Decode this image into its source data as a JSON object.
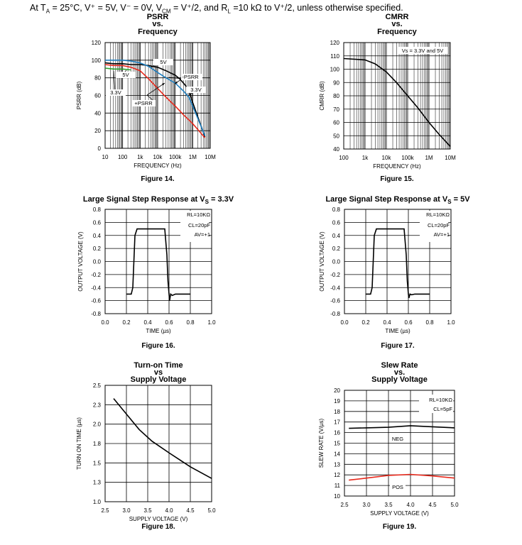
{
  "header": {
    "prefix": "At T",
    "ta_sub": "A",
    "mid": " = 25°C, V⁺ = 5V, V⁻ = 0V, V",
    "cm_sub": "CM",
    "rest": " = V⁺/2, and R",
    "rl_sub": "L",
    "tail": " =10 kΩ to V⁺/2, unless otherwise specified."
  },
  "chart_data": [
    {
      "type": "line",
      "title": [
        "PSRR",
        "vs.",
        "Frequency"
      ],
      "figure": "Figure 14.",
      "xlabel": "FREQUENCY (Hz)",
      "ylabel": "PSRR (dB)",
      "xscale": "log",
      "xticks": [
        "10",
        "100",
        "1k",
        "10k",
        "100k",
        "1M",
        "10M"
      ],
      "yticks": [
        "0",
        "20",
        "40",
        "60",
        "80",
        "100",
        "120"
      ],
      "xlim": [
        10,
        10000000
      ],
      "ylim": [
        0,
        120
      ],
      "grid": true,
      "annotations": [
        "5V",
        "-PSRR",
        "5V",
        "3.3V",
        "3.3V",
        "+PSRR"
      ],
      "series": [
        {
          "color": "#000000",
          "x": [
            10,
            30,
            100,
            300,
            1000,
            3000,
            10000,
            30000,
            100000,
            200000,
            400000,
            700000,
            1000000,
            2000000,
            5000000
          ],
          "y": [
            97,
            96,
            96,
            95,
            95,
            94,
            92,
            88,
            83,
            78,
            71,
            62,
            52,
            35,
            13
          ]
        },
        {
          "color": "#1f7fc0",
          "x": [
            10,
            30,
            100,
            300,
            1000,
            3000,
            10000,
            30000,
            100000,
            300000,
            600000,
            1000000,
            3000000,
            5000000
          ],
          "y": [
            100,
            100,
            100,
            99,
            97,
            93,
            86,
            80,
            74,
            65,
            58,
            48,
            25,
            14
          ]
        },
        {
          "color": "#2ca02c",
          "x": [
            10,
            30,
            60,
            100,
            300
          ],
          "y": [
            91,
            90,
            90,
            90,
            89
          ]
        },
        {
          "color": "#e8291c",
          "x": [
            10,
            30,
            100,
            300,
            1000,
            3000,
            10000,
            30000,
            100000,
            300000,
            1000000,
            3000000,
            5000000
          ],
          "y": [
            95,
            94,
            94,
            92,
            88,
            79,
            68,
            58,
            48,
            38,
            28,
            17,
            12
          ]
        }
      ]
    },
    {
      "type": "line",
      "title": [
        "CMRR",
        "vs.",
        "Frequency"
      ],
      "figure": "Figure 15.",
      "xlabel": "FREQUENCY (Hz)",
      "ylabel": "CMRR (dB)",
      "xscale": "log",
      "xticks": [
        "100",
        "1k",
        "10k",
        "100k",
        "1M",
        "10M"
      ],
      "yticks": [
        "40",
        "50",
        "60",
        "70",
        "80",
        "90",
        "100",
        "110",
        "120"
      ],
      "xlim": [
        100,
        10000000
      ],
      "ylim": [
        40,
        120
      ],
      "grid": true,
      "legend": "Vs = 3.3V and 5V",
      "series": [
        {
          "color": "#000000",
          "x": [
            100,
            1000,
            3000,
            10000,
            30000,
            100000,
            300000,
            1000000,
            3000000,
            10000000
          ],
          "y": [
            108,
            107,
            104,
            98,
            90,
            80,
            71,
            60,
            51,
            42
          ]
        }
      ]
    },
    {
      "type": "line",
      "title": [
        "Large Signal Step Response at V",
        "S",
        " = 3.3V"
      ],
      "figure": "Figure 16.",
      "xlabel": "TIME (µs)",
      "ylabel": "OUTPUT VOLTAGE (V)",
      "xticks": [
        "0.0",
        "0.2",
        "0.4",
        "0.6",
        "0.8",
        "1.0"
      ],
      "yticks": [
        "-0.8",
        "-0.6",
        "-0.4",
        "-0.2",
        "0.0",
        "0.2",
        "0.4",
        "0.6",
        "0.8"
      ],
      "xlim": [
        0,
        1
      ],
      "ylim": [
        -0.8,
        0.8
      ],
      "grid": true,
      "annotations": [
        "RL=10KΩ",
        "CL=20pF",
        "AV=+1"
      ],
      "series": [
        {
          "color": "#000000",
          "x": [
            0.2,
            0.245,
            0.26,
            0.27,
            0.28,
            0.3,
            0.42,
            0.56,
            0.58,
            0.59,
            0.6,
            0.605,
            0.615,
            0.63,
            0.66,
            0.8
          ],
          "y": [
            -0.5,
            -0.5,
            -0.4,
            0.0,
            0.4,
            0.5,
            0.5,
            0.5,
            0.1,
            -0.3,
            -0.5,
            -0.6,
            -0.5,
            -0.52,
            -0.5,
            -0.5
          ]
        }
      ]
    },
    {
      "type": "line",
      "title": [
        "Large Signal Step Response at V",
        "S",
        " = 5V"
      ],
      "figure": "Figure 17.",
      "xlabel": "TIME (µs)",
      "ylabel": "OUTPUT VOLTAGE (V)",
      "xticks": [
        "0.0",
        "0.2",
        "0.4",
        "0.6",
        "0.8",
        "1.0"
      ],
      "yticks": [
        "-0.8",
        "-0.6",
        "-0.4",
        "-0.2",
        "0.0",
        "0.2",
        "0.4",
        "0.6",
        "0.8"
      ],
      "xlim": [
        0,
        1
      ],
      "ylim": [
        -0.8,
        0.8
      ],
      "grid": true,
      "annotations": [
        "RL=10KΩ",
        "CL=20pF",
        "AV=+1"
      ],
      "series": [
        {
          "color": "#000000",
          "x": [
            0.2,
            0.245,
            0.26,
            0.27,
            0.28,
            0.3,
            0.42,
            0.56,
            0.58,
            0.59,
            0.6,
            0.605,
            0.615,
            0.63,
            0.66,
            0.8
          ],
          "y": [
            -0.5,
            -0.5,
            -0.4,
            0.0,
            0.4,
            0.5,
            0.5,
            0.5,
            0.1,
            -0.3,
            -0.5,
            -0.56,
            -0.5,
            -0.51,
            -0.5,
            -0.5
          ]
        }
      ]
    },
    {
      "type": "line",
      "title": [
        "Turn-on Time",
        "vs",
        "Supply Voltage"
      ],
      "figure": "Figure 18.",
      "xlabel": "SUPPLY VOLTAGE (V)",
      "ylabel": "TURN ON TIME (µs)",
      "xticks": [
        "2.5",
        "3.0",
        "3.5",
        "4.0",
        "4.5",
        "5.0"
      ],
      "yticks": [
        "1.0",
        "1.3",
        "1.5",
        "1.8",
        "2.0",
        "2.3",
        "2.5"
      ],
      "xlim": [
        2.5,
        5.0
      ],
      "ylim": [
        1.0,
        2.5
      ],
      "grid": true,
      "series": [
        {
          "color": "#000000",
          "x": [
            2.7,
            3.0,
            3.3,
            3.6,
            4.0,
            4.5,
            5.0
          ],
          "y": [
            2.33,
            2.13,
            1.93,
            1.78,
            1.63,
            1.45,
            1.3
          ]
        }
      ]
    },
    {
      "type": "line",
      "title": [
        "Slew Rate",
        "vs.",
        "Supply Voltage"
      ],
      "figure": "Figure 19.",
      "xlabel": "SUPPLY VOLTAGE (V)",
      "ylabel": "SLEW RATE (V/µs)",
      "xticks": [
        "2.5",
        "3.0",
        "3.5",
        "4.0",
        "4.5",
        "5.0"
      ],
      "yticks": [
        "10",
        "11",
        "12",
        "13",
        "14",
        "15",
        "16",
        "17",
        "18",
        "19",
        "20"
      ],
      "xlim": [
        2.5,
        5.0
      ],
      "ylim": [
        10,
        20
      ],
      "grid": true,
      "annotations": [
        "RL=10KΩ",
        "CL=5pF",
        "NEG",
        "POS"
      ],
      "series": [
        {
          "name": "NEG",
          "color": "#000000",
          "x": [
            2.6,
            3.0,
            3.5,
            4.0,
            4.5,
            5.0
          ],
          "y": [
            16.4,
            16.45,
            16.5,
            16.65,
            16.55,
            16.45
          ]
        },
        {
          "name": "POS",
          "color": "#e8291c",
          "x": [
            2.6,
            3.0,
            3.5,
            4.0,
            4.5,
            5.0
          ],
          "y": [
            11.5,
            11.7,
            11.95,
            12.05,
            11.9,
            11.7
          ]
        }
      ]
    }
  ]
}
